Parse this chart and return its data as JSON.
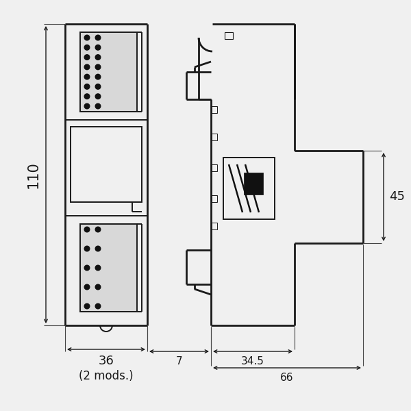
{
  "bg_color": "#f0f0f0",
  "line_color": "#1a1a1a",
  "lw": 1.4,
  "lw_thick": 2.0,
  "lw_thin": 0.8,
  "figsize": [
    6.0,
    6.0
  ],
  "dpi": 100,
  "dim_110": "110",
  "dim_36": "36",
  "dim_7": "7",
  "dim_34_5": "34.5",
  "dim_66": "66",
  "dim_45": "45",
  "mods": "(2 mods.)"
}
